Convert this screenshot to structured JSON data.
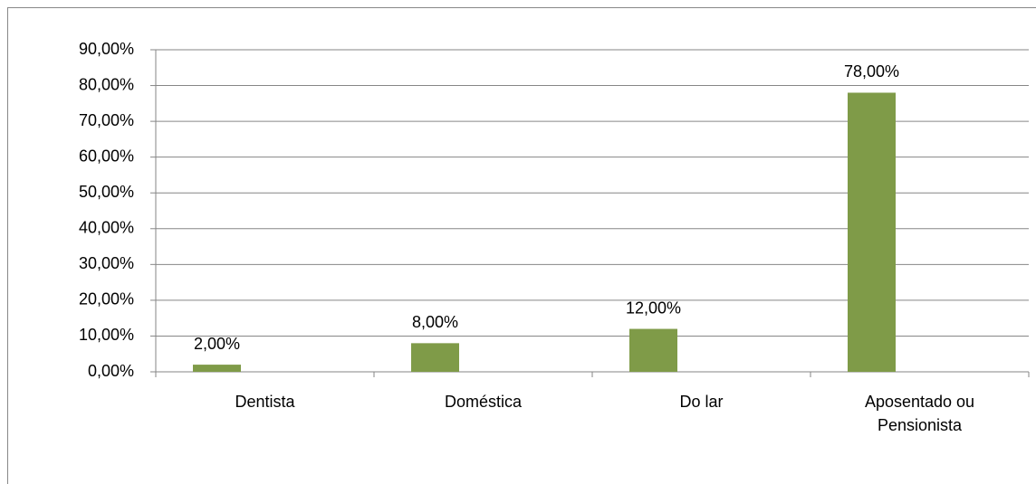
{
  "chart_data": {
    "type": "bar",
    "categories": [
      "Dentista",
      "Doméstica",
      "Do lar",
      "Aposentado ou Pensionista"
    ],
    "values": [
      2,
      8,
      12,
      78
    ],
    "value_labels": [
      "2,00%",
      "8,00%",
      "12,00%",
      "78,00%"
    ],
    "color": "#7f9b48",
    "ylim": [
      0,
      90
    ],
    "yticks": [
      {
        "value": 0,
        "label": "0,00%"
      },
      {
        "value": 10,
        "label": "10,00%"
      },
      {
        "value": 20,
        "label": "20,00%"
      },
      {
        "value": 30,
        "label": "30,00%"
      },
      {
        "value": 40,
        "label": "40,00%"
      },
      {
        "value": 50,
        "label": "50,00%"
      },
      {
        "value": 60,
        "label": "60,00%"
      },
      {
        "value": 70,
        "label": "70,00%"
      },
      {
        "value": 80,
        "label": "80,00%"
      },
      {
        "value": 90,
        "label": "90,00%"
      }
    ],
    "grid": true
  }
}
